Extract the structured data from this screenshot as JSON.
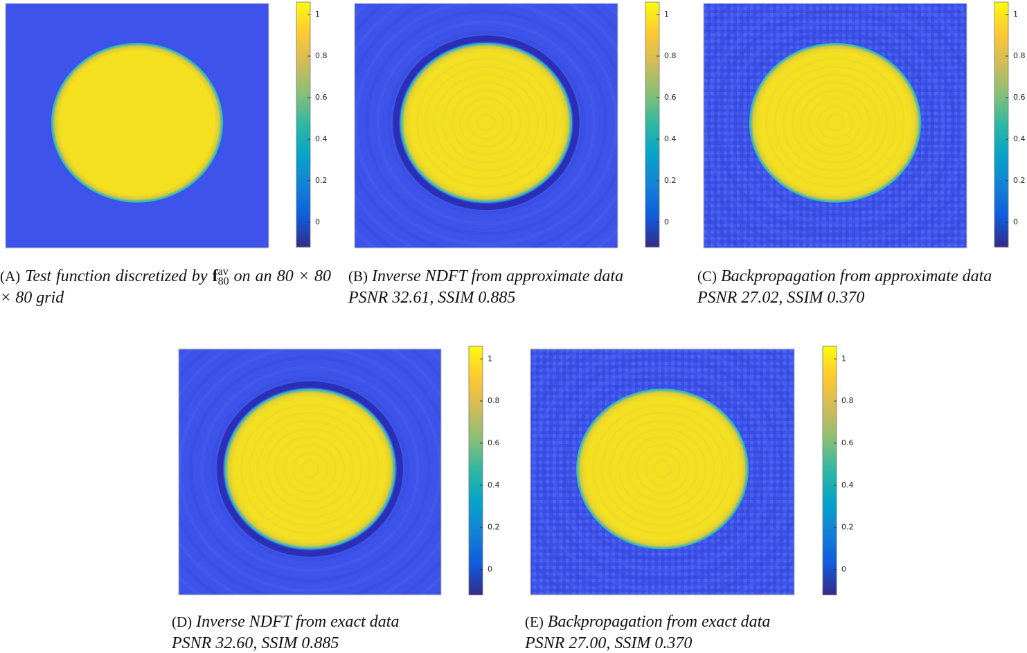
{
  "figure": {
    "panels": [
      {
        "label": "(A)",
        "caption_before": "Test function discretized by",
        "math": {
          "symbol": "f",
          "superscript": "av",
          "subscript": "80"
        },
        "caption_after": "on an 80 × 80 × 80 grid",
        "colorbar": {
          "lim": [
            -0.12,
            1.06
          ],
          "ticks": [
            0,
            0.2,
            0.4,
            0.6,
            0.8,
            1
          ]
        }
      },
      {
        "label": "(B)",
        "caption_before": "Inverse NDFT from approximate data",
        "metrics": "PSNR 32.61, SSIM 0.885",
        "colorbar": {
          "lim": [
            -0.12,
            1.06
          ],
          "ticks": [
            0,
            0.2,
            0.4,
            0.6,
            0.8,
            1
          ]
        }
      },
      {
        "label": "(C)",
        "caption_before": "Backpropagation from approximate data",
        "metrics": "PSNR 27.02, SSIM 0.370",
        "colorbar": {
          "lim": [
            -0.12,
            1.06
          ],
          "ticks": [
            0,
            0.2,
            0.4,
            0.6,
            0.8,
            1
          ]
        }
      },
      {
        "label": "(D)",
        "caption_before": "Inverse NDFT from exact data",
        "metrics": "PSNR 32.60, SSIM 0.885",
        "colorbar": {
          "lim": [
            -0.12,
            1.06
          ],
          "ticks": [
            0,
            0.2,
            0.4,
            0.6,
            0.8,
            1
          ]
        }
      },
      {
        "label": "(E)",
        "caption_before": "Backpropagation from exact data",
        "metrics": "PSNR 27.00, SSIM 0.370",
        "colorbar": {
          "lim": [
            -0.12,
            1.06
          ],
          "ticks": [
            0,
            0.2,
            0.4,
            0.6,
            0.8,
            1
          ]
        }
      }
    ]
  }
}
